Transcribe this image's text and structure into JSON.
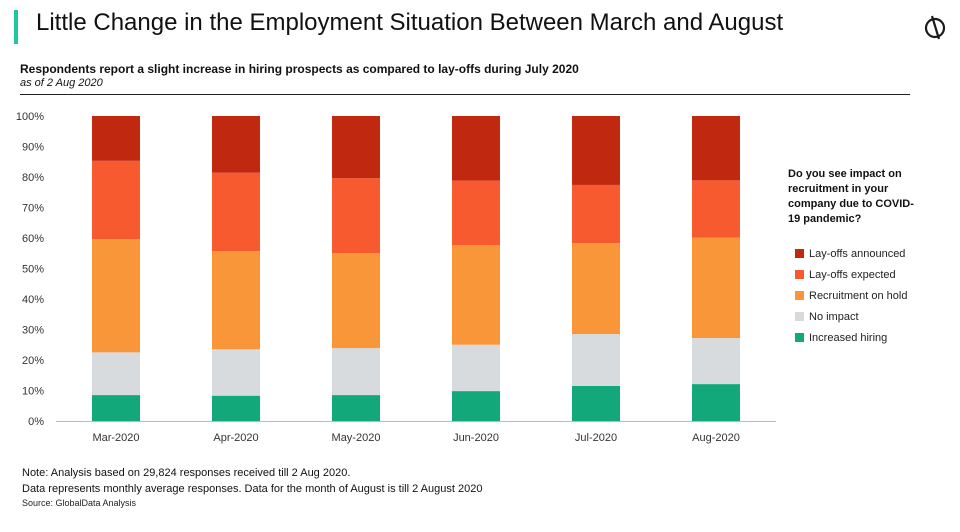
{
  "header": {
    "title": "Little Change in the Employment Situation Between March and August",
    "logo_icon": "globaldata-logo-icon",
    "accent_color": "#1fc6a0"
  },
  "subtitle": "Respondents report a slight increase in  hiring prospects as compared to lay-offs during July 2020",
  "as_of": "as of 2 Aug 2020",
  "legend_title": "Do you see impact on recruitment in your company due to COVID-19 pandemic?",
  "notes": [
    "Note: Analysis based on 29,824 responses received till 2 Aug 2020.",
    "Data represents monthly average responses. Data for the month of August is till 2 August 2020"
  ],
  "source": "Source: GlobalData Analysis",
  "chart_data": {
    "type": "bar",
    "stacked": true,
    "categories": [
      "Mar-2020",
      "Apr-2020",
      "May-2020",
      "Jun-2020",
      "Jul-2020",
      "Aug-2020"
    ],
    "ylim": [
      0,
      100
    ],
    "yticks": [
      "0%",
      "10%",
      "20%",
      "30%",
      "40%",
      "50%",
      "60%",
      "70%",
      "80%",
      "90%",
      "100%"
    ],
    "grid": false,
    "legend_position": "right",
    "series": [
      {
        "name": "Increased hiring",
        "color": "#12a87a",
        "values": [
          8.5,
          8.3,
          8.5,
          9.8,
          11.5,
          12.1
        ]
      },
      {
        "name": "No impact",
        "color": "#d8dbdd",
        "values": [
          14.0,
          15.2,
          15.4,
          15.2,
          17.0,
          15.1
        ]
      },
      {
        "name": "Recruitment on hold",
        "color": "#f9963a",
        "values": [
          37.1,
          32.2,
          31.1,
          32.6,
          29.8,
          32.9
        ]
      },
      {
        "name": "Lay-offs expected",
        "color": "#f85a2f",
        "values": [
          25.7,
          25.7,
          24.6,
          21.2,
          19.1,
          18.8
        ]
      },
      {
        "name": "Lay-offs announced",
        "color": "#c0280f",
        "values": [
          14.7,
          18.6,
          20.4,
          21.2,
          22.6,
          21.1
        ]
      }
    ]
  }
}
